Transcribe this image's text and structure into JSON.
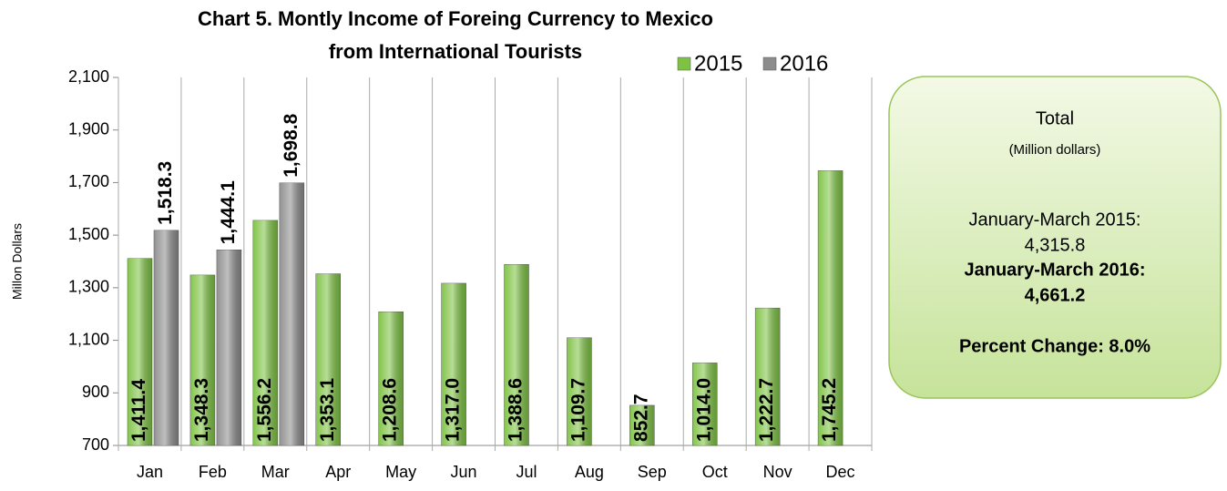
{
  "chart_data": {
    "type": "bar",
    "title": [
      "Chart 5. Montly Income of Foreing Currency to Mexico",
      "from International  Tourists"
    ],
    "y_label": "Millon  Dollars",
    "categories": [
      "Jan",
      "Feb",
      "Mar",
      "Apr",
      "May",
      "Jun",
      "Jul",
      "Aug",
      "Sep",
      "Oct",
      "Nov",
      "Dec"
    ],
    "series": [
      {
        "name": "2015",
        "color": "#7dc242",
        "values": [
          1411.4,
          1348.3,
          1556.2,
          1353.1,
          1208.6,
          1317.0,
          1388.6,
          1109.7,
          852.7,
          1014.0,
          1222.7,
          1745.2
        ],
        "value_labels": [
          "1,411.4",
          "1,348.3",
          "1,556.2",
          "1,353.1",
          "1,208.6",
          "1,317.0",
          "1,388.6",
          "1,109.7",
          "852.7",
          "1,014.0",
          "1,222.7",
          "1,745.2"
        ]
      },
      {
        "name": "2016",
        "color": "#8c8c8c",
        "values": [
          1518.3,
          1444.1,
          1698.8,
          null,
          null,
          null,
          null,
          null,
          null,
          null,
          null,
          null
        ],
        "value_labels": [
          "1,518.3",
          "1,444.1",
          "1,698.8",
          null,
          null,
          null,
          null,
          null,
          null,
          null,
          null,
          null
        ]
      }
    ],
    "ylim": [
      700,
      2100
    ],
    "yticks": [
      700,
      900,
      {
        "value": 1100,
        "label": "1,100"
      },
      {
        "value": 1300,
        "label": "1,300"
      },
      {
        "value": 1500,
        "label": "1,500"
      },
      {
        "value": 1700,
        "label": "1,700"
      },
      {
        "value": 1900,
        "label": "1,900"
      },
      {
        "value": 2100,
        "label": "2,100"
      }
    ],
    "legend": "top-right",
    "summary_box": {
      "heading": "Total",
      "unit": "(Million dollars)",
      "lines": [
        "January-March 2015:",
        "4,315.8",
        "January-March 2016:",
        "4,661.2",
        "Percent Change: 8.0%"
      ]
    }
  }
}
